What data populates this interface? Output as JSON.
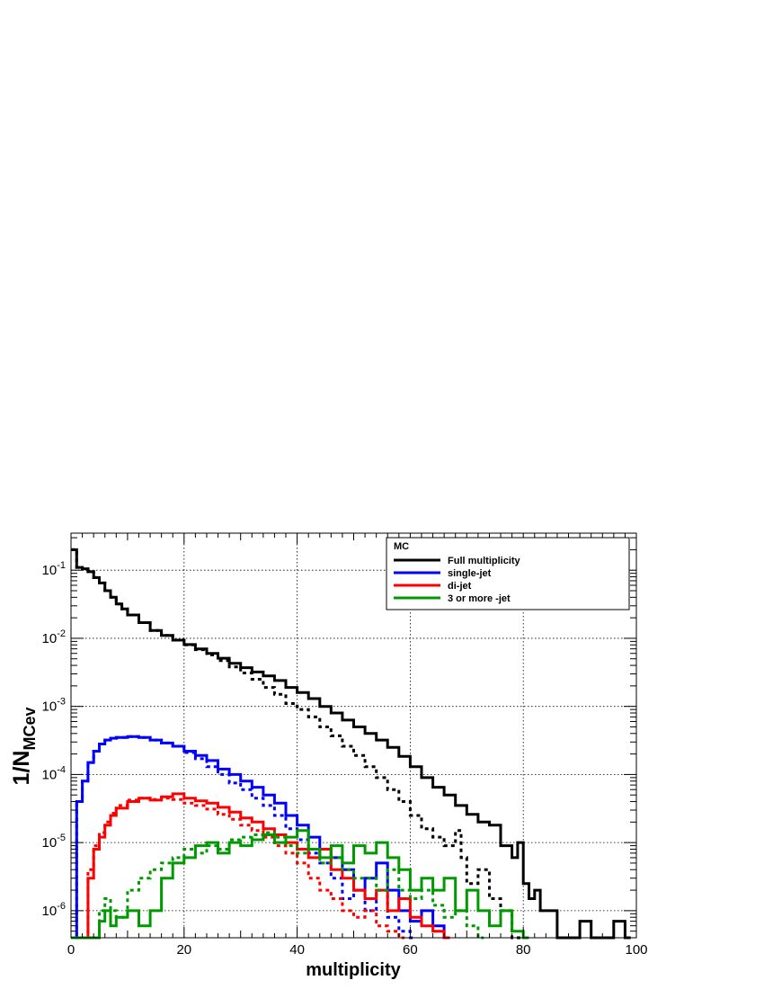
{
  "chart_data": {
    "type": "line",
    "title": "",
    "xlabel": "multiplicity",
    "ylabel": "1/N",
    "ylabel_subscript": "MCev",
    "xlim": [
      0,
      100
    ],
    "ylim": [
      4e-07,
      0.35
    ],
    "yscale": "log",
    "grid": true,
    "x_ticks": [
      0,
      20,
      40,
      60,
      80,
      100
    ],
    "x_tick_labels": [
      "0",
      "20",
      "40",
      "60",
      "80",
      "100"
    ],
    "y_ticks": [
      1e-06,
      1e-05,
      0.0001,
      0.001,
      0.01,
      0.1
    ],
    "y_tick_labels": [
      {
        "base": "10",
        "exp": "-6"
      },
      {
        "base": "10",
        "exp": "-5"
      },
      {
        "base": "10",
        "exp": "-4"
      },
      {
        "base": "10",
        "exp": "-3"
      },
      {
        "base": "10",
        "exp": "-2"
      },
      {
        "base": "10",
        "exp": "-1"
      }
    ],
    "legend": {
      "title": "MC",
      "position": "top-right",
      "entries": [
        "Full  multiplicity",
        "single-jet",
        "di-jet",
        "3 or more -jet"
      ]
    },
    "bin_width": 1,
    "series": [
      {
        "color": "#000000",
        "style": "solid",
        "x": [
          0,
          1,
          2,
          3,
          4,
          5,
          6,
          7,
          8,
          9,
          10,
          12,
          14,
          16,
          18,
          20,
          22,
          24,
          26,
          28,
          30,
          32,
          34,
          36,
          38,
          40,
          42,
          44,
          46,
          48,
          50,
          52,
          54,
          56,
          58,
          60,
          62,
          64,
          66,
          68,
          70,
          72,
          74,
          76,
          78,
          79,
          80,
          81,
          82,
          83,
          84,
          86,
          88,
          90,
          92,
          94,
          96,
          98
        ],
        "y": [
          0.2,
          0.11,
          0.105,
          0.095,
          0.078,
          0.065,
          0.05,
          0.04,
          0.032,
          0.027,
          0.022,
          0.017,
          0.013,
          0.011,
          0.0094,
          0.0081,
          0.007,
          0.006,
          0.0051,
          0.0043,
          0.0037,
          0.0032,
          0.0028,
          0.0024,
          0.0019,
          0.0016,
          0.0013,
          0.001,
          0.0008,
          0.00063,
          0.0005,
          0.0004,
          0.00032,
          0.00025,
          0.000185,
          0.00013,
          9e-05,
          6.5e-05,
          5e-05,
          3.5e-05,
          2.6e-05,
          2e-05,
          1.8e-05,
          9e-06,
          6e-06,
          1e-05,
          2.5e-06,
          1.5e-06,
          2e-06,
          1e-06,
          1e-06,
          0,
          0,
          7e-07,
          0,
          0,
          7e-07,
          0
        ]
      },
      {
        "color": "#000000",
        "style": "dotted",
        "x": [
          0,
          1,
          2,
          3,
          4,
          5,
          6,
          7,
          8,
          9,
          10,
          12,
          14,
          16,
          18,
          20,
          22,
          24,
          26,
          28,
          30,
          32,
          34,
          36,
          38,
          40,
          42,
          44,
          46,
          48,
          50,
          52,
          54,
          56,
          58,
          60,
          62,
          64,
          66,
          68,
          69,
          70,
          72,
          74,
          76,
          78,
          80
        ],
        "y": [
          0.2,
          0.11,
          0.105,
          0.095,
          0.078,
          0.065,
          0.05,
          0.04,
          0.032,
          0.027,
          0.022,
          0.017,
          0.013,
          0.011,
          0.0094,
          0.008,
          0.0068,
          0.0057,
          0.0047,
          0.0038,
          0.0031,
          0.0025,
          0.0019,
          0.0015,
          0.0011,
          0.0009,
          0.0007,
          0.0005,
          0.00037,
          0.00026,
          0.00019,
          0.00013,
          9e-05,
          6e-05,
          4e-05,
          2.5e-05,
          1.6e-05,
          1.2e-05,
          9e-06,
          1.5e-05,
          6e-06,
          2.5e-06,
          4e-06,
          1.5e-06,
          1e-06,
          0,
          0
        ]
      },
      {
        "color": "#0000ff",
        "style": "solid",
        "x": [
          0,
          1,
          2,
          3,
          4,
          5,
          6,
          7,
          8,
          10,
          12,
          14,
          16,
          18,
          20,
          22,
          24,
          26,
          28,
          30,
          32,
          34,
          36,
          38,
          40,
          42,
          44,
          46,
          48,
          50,
          52,
          54,
          56,
          58,
          60,
          62,
          64,
          66
        ],
        "y": [
          0,
          4e-05,
          8e-05,
          0.00015,
          0.00022,
          0.00028,
          0.00032,
          0.00034,
          0.00035,
          0.00036,
          0.00035,
          0.00032,
          0.00029,
          0.00026,
          0.00022,
          0.00019,
          0.00016,
          0.00012,
          0.0001,
          8e-05,
          6.5e-05,
          5e-05,
          3.8e-05,
          2.5e-05,
          1.8e-05,
          1.2e-05,
          8e-06,
          6e-06,
          4e-06,
          2e-06,
          3e-06,
          5e-06,
          2e-06,
          1e-06,
          7e-07,
          1e-06,
          6e-07,
          0
        ]
      },
      {
        "color": "#0000ff",
        "style": "dotted",
        "x": [
          0,
          1,
          2,
          3,
          4,
          5,
          6,
          7,
          8,
          10,
          12,
          14,
          16,
          18,
          20,
          22,
          24,
          26,
          28,
          30,
          32,
          34,
          36,
          38,
          40,
          42,
          44,
          46,
          48,
          50,
          52,
          54,
          56,
          58,
          60
        ],
        "y": [
          0,
          4e-05,
          8e-05,
          0.00015,
          0.00022,
          0.00028,
          0.00032,
          0.00034,
          0.00035,
          0.00036,
          0.00035,
          0.00032,
          0.00029,
          0.00026,
          0.00021,
          0.00017,
          0.00013,
          0.0001,
          7.5e-05,
          6e-05,
          4.5e-05,
          3.5e-05,
          2.5e-05,
          1.6e-05,
          1.1e-05,
          7e-06,
          5e-06,
          3e-06,
          1.5e-06,
          2e-06,
          1e-06,
          2e-06,
          8e-07,
          5e-07,
          0
        ]
      },
      {
        "color": "#ff0000",
        "style": "solid",
        "x": [
          0,
          3,
          4,
          5,
          6,
          7,
          8,
          10,
          12,
          14,
          16,
          18,
          20,
          22,
          24,
          26,
          28,
          30,
          32,
          34,
          36,
          38,
          40,
          42,
          44,
          46,
          48,
          50,
          52,
          54,
          56,
          58,
          60,
          62,
          64,
          66
        ],
        "y": [
          0,
          3e-06,
          8e-06,
          1.2e-05,
          1.8e-05,
          2.5e-05,
          3.2e-05,
          4e-05,
          4.5e-05,
          4.2e-05,
          4.7e-05,
          5.2e-05,
          4.5e-05,
          4.1e-05,
          3.8e-05,
          3.3e-05,
          2.8e-05,
          2.3e-05,
          2e-05,
          1.6e-05,
          1.3e-05,
          1e-05,
          8e-06,
          6e-06,
          8e-06,
          4e-06,
          3e-06,
          2e-06,
          1.5e-06,
          2e-06,
          1e-06,
          1.5e-06,
          8e-07,
          6e-07,
          5e-07,
          0
        ]
      },
      {
        "color": "#ff0000",
        "style": "dotted",
        "x": [
          0,
          3,
          4,
          5,
          6,
          7,
          8,
          10,
          12,
          14,
          16,
          18,
          20,
          22,
          24,
          26,
          28,
          30,
          32,
          34,
          36,
          38,
          40,
          42,
          44,
          46,
          48,
          50,
          52,
          54,
          56,
          58
        ],
        "y": [
          0,
          4e-06,
          9e-06,
          1.4e-05,
          2e-05,
          2.7e-05,
          3.5e-05,
          4.2e-05,
          4.5e-05,
          4.3e-05,
          4.5e-05,
          4.3e-05,
          3.8e-05,
          3.5e-05,
          3.1e-05,
          2.6e-05,
          2.2e-05,
          1.8e-05,
          1.5e-05,
          1.2e-05,
          9e-06,
          7e-06,
          5e-06,
          3e-06,
          2e-06,
          1.5e-06,
          1e-06,
          8e-07,
          1e-06,
          6e-07,
          5e-07,
          0
        ]
      },
      {
        "color": "#009900",
        "style": "solid",
        "x": [
          0,
          5,
          6,
          7,
          8,
          10,
          12,
          14,
          16,
          18,
          20,
          22,
          24,
          26,
          28,
          30,
          32,
          34,
          36,
          38,
          40,
          42,
          44,
          46,
          48,
          50,
          52,
          54,
          56,
          58,
          60,
          62,
          64,
          66,
          68,
          70,
          72,
          74,
          76,
          78,
          80
        ],
        "y": [
          0,
          7e-07,
          1e-06,
          6e-07,
          8e-07,
          1e-06,
          6e-07,
          1e-06,
          3e-06,
          5e-06,
          6e-06,
          9e-06,
          1e-05,
          7e-06,
          1e-05,
          9e-06,
          1.1e-05,
          1.3e-05,
          1e-05,
          1.2e-05,
          1.5e-05,
          8e-06,
          6e-06,
          9e-06,
          5e-06,
          9e-06,
          7e-06,
          1e-05,
          6e-06,
          4e-06,
          2e-06,
          3e-06,
          2e-06,
          3e-06,
          1e-06,
          2e-06,
          1e-06,
          6e-07,
          1e-06,
          5e-07,
          0
        ]
      },
      {
        "color": "#009900",
        "style": "dotted",
        "x": [
          0,
          5,
          6,
          7,
          8,
          10,
          12,
          14,
          16,
          18,
          20,
          22,
          24,
          26,
          28,
          30,
          32,
          34,
          36,
          38,
          40,
          42,
          44,
          46,
          48,
          50,
          52,
          54,
          56,
          58,
          60,
          62,
          64,
          66,
          68,
          70,
          72
        ],
        "y": [
          0,
          1e-06,
          1.5e-06,
          1e-06,
          8e-07,
          2e-06,
          3e-06,
          4e-06,
          5e-06,
          6e-06,
          8e-06,
          7e-06,
          9e-06,
          8e-06,
          1.1e-05,
          1.2e-05,
          1.3e-05,
          1.4e-05,
          1.2e-05,
          9e-06,
          7e-06,
          8e-06,
          5e-06,
          6e-06,
          4e-06,
          3e-06,
          3e-06,
          2e-06,
          4e-06,
          2e-06,
          1.5e-06,
          2e-06,
          1.2e-06,
          8e-07,
          1e-06,
          6e-07,
          0
        ]
      }
    ]
  }
}
